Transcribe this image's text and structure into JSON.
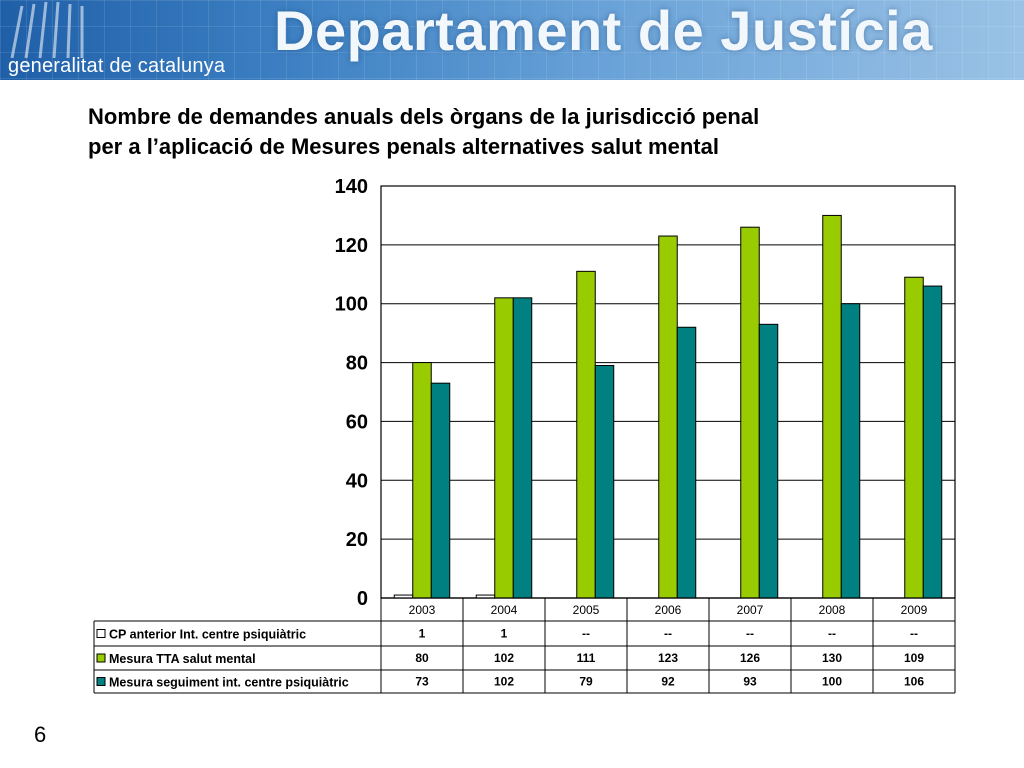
{
  "header": {
    "organization": "generalitat de catalunya",
    "department": "Departament de Justícia"
  },
  "title_lines": [
    "Nombre de demandes anuals dels òrgans de la jurisdicció penal",
    "per a l’aplicació de Mesures penals alternatives salut mental"
  ],
  "page_number": "6",
  "chart_data": {
    "type": "bar",
    "title": "Nombre de demandes anuals dels òrgans de la jurisdicció penal per a l’aplicació de Mesures penals alternatives salut mental",
    "categories": [
      "2003",
      "2004",
      "2005",
      "2006",
      "2007",
      "2008",
      "2009"
    ],
    "series": [
      {
        "name": "CP anterior Int. centre psiquiàtric",
        "values": [
          1,
          1,
          null,
          null,
          null,
          null,
          null
        ],
        "table_values": [
          "1",
          "1",
          "--",
          "--",
          "--",
          "--",
          "--"
        ],
        "color": "#ffffff"
      },
      {
        "name": "Mesura TTA salut mental",
        "values": [
          80,
          102,
          111,
          123,
          126,
          130,
          109
        ],
        "table_values": [
          "80",
          "102",
          "111",
          "123",
          "126",
          "130",
          "109"
        ],
        "color": "#99cc00"
      },
      {
        "name": "Mesura seguiment int. centre psiquiàtric",
        "values": [
          73,
          102,
          79,
          92,
          93,
          100,
          106
        ],
        "table_values": [
          "73",
          "102",
          "79",
          "92",
          "93",
          "100",
          "106"
        ],
        "color": "#008080"
      }
    ],
    "ylim": [
      0,
      140
    ],
    "yticks": [
      0,
      20,
      40,
      60,
      80,
      100,
      120,
      140
    ],
    "grid": true,
    "legend": "data table below chart",
    "xlabel": "",
    "ylabel": ""
  }
}
